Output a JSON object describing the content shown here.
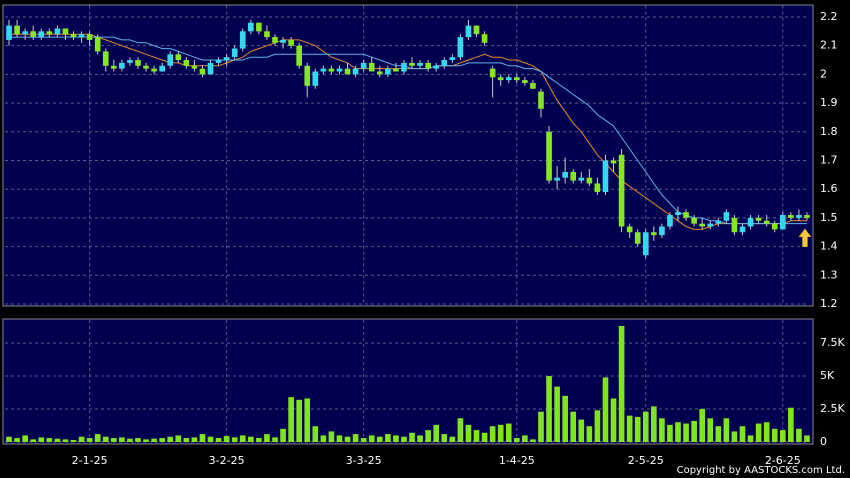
{
  "chart_data": {
    "type": "candlestick",
    "colors": {
      "up": "#36d8f0",
      "down": "#86e622",
      "wick": "#cccccc",
      "panel": "#000050"
    },
    "grid": true,
    "ylim": [
      1.2,
      2.24
    ],
    "yticks": [
      1.2,
      1.3,
      1.4,
      1.5,
      1.6,
      1.7,
      1.8,
      1.9,
      2,
      2.1,
      2.2
    ],
    "xticks": [
      {
        "value": 10,
        "label": "2-1-25"
      },
      {
        "value": 27,
        "label": "3-2-25"
      },
      {
        "value": 44,
        "label": "3-3-25"
      },
      {
        "value": 63,
        "label": "1-4-25"
      },
      {
        "value": 79,
        "label": "2-5-25"
      },
      {
        "value": 96,
        "label": "2-6-25"
      }
    ],
    "candles": [
      [
        2.12,
        2.19,
        2.1,
        2.17
      ],
      [
        2.17,
        2.19,
        2.13,
        2.14
      ],
      [
        2.14,
        2.16,
        2.12,
        2.15
      ],
      [
        2.15,
        2.17,
        2.12,
        2.13
      ],
      [
        2.13,
        2.16,
        2.12,
        2.15
      ],
      [
        2.15,
        2.16,
        2.13,
        2.14
      ],
      [
        2.14,
        2.17,
        2.13,
        2.16
      ],
      [
        2.16,
        2.16,
        2.12,
        2.14
      ],
      [
        2.14,
        2.15,
        2.12,
        2.13
      ],
      [
        2.13,
        2.15,
        2.11,
        2.14
      ],
      [
        2.14,
        2.15,
        2.1,
        2.12
      ],
      [
        2.13,
        2.14,
        2.07,
        2.08
      ],
      [
        2.08,
        2.09,
        2.01,
        2.03
      ],
      [
        2.03,
        2.05,
        2.01,
        2.02
      ],
      [
        2.02,
        2.05,
        2.01,
        2.04
      ],
      [
        2.04,
        2.06,
        2.03,
        2.05
      ],
      [
        2.05,
        2.06,
        2.02,
        2.03
      ],
      [
        2.03,
        2.04,
        2.01,
        2.02
      ],
      [
        2.02,
        2.03,
        2.0,
        2.01
      ],
      [
        2.01,
        2.04,
        2.01,
        2.03
      ],
      [
        2.03,
        2.08,
        2.02,
        2.07
      ],
      [
        2.07,
        2.08,
        2.04,
        2.05
      ],
      [
        2.05,
        2.06,
        2.02,
        2.03
      ],
      [
        2.03,
        2.05,
        2.01,
        2.02
      ],
      [
        2.02,
        2.03,
        1.99,
        2.0
      ],
      [
        2.0,
        2.05,
        2.0,
        2.04
      ],
      [
        2.04,
        2.06,
        2.03,
        2.05
      ],
      [
        2.05,
        2.07,
        2.03,
        2.06
      ],
      [
        2.06,
        2.1,
        2.05,
        2.09
      ],
      [
        2.09,
        2.16,
        2.08,
        2.15
      ],
      [
        2.15,
        2.19,
        2.14,
        2.18
      ],
      [
        2.18,
        2.18,
        2.14,
        2.15
      ],
      [
        2.15,
        2.17,
        2.12,
        2.13
      ],
      [
        2.13,
        2.14,
        2.1,
        2.11
      ],
      [
        2.11,
        2.13,
        2.09,
        2.12
      ],
      [
        2.12,
        2.13,
        2.09,
        2.1
      ],
      [
        2.1,
        2.11,
        2.02,
        2.03
      ],
      [
        2.03,
        2.04,
        1.92,
        1.96
      ],
      [
        1.96,
        2.02,
        1.95,
        2.01
      ],
      [
        2.01,
        2.03,
        2.0,
        2.02
      ],
      [
        2.02,
        2.03,
        2.0,
        2.01
      ],
      [
        2.01,
        2.03,
        2.0,
        2.02
      ],
      [
        2.02,
        2.04,
        2.0,
        2.0
      ],
      [
        2.0,
        2.03,
        1.99,
        2.02
      ],
      [
        2.02,
        2.05,
        2.01,
        2.04
      ],
      [
        2.04,
        2.06,
        2.01,
        2.01
      ],
      [
        2.01,
        2.03,
        1.99,
        2.0
      ],
      [
        2.0,
        2.03,
        1.99,
        2.02
      ],
      [
        2.02,
        2.04,
        2.01,
        2.01
      ],
      [
        2.01,
        2.05,
        2.0,
        2.04
      ],
      [
        2.04,
        2.06,
        2.02,
        2.03
      ],
      [
        2.03,
        2.05,
        2.02,
        2.04
      ],
      [
        2.04,
        2.05,
        2.01,
        2.02
      ],
      [
        2.02,
        2.04,
        2.01,
        2.03
      ],
      [
        2.03,
        2.06,
        2.02,
        2.05
      ],
      [
        2.05,
        2.07,
        2.04,
        2.06
      ],
      [
        2.06,
        2.14,
        2.05,
        2.13
      ],
      [
        2.13,
        2.19,
        2.12,
        2.17
      ],
      [
        2.17,
        2.17,
        2.13,
        2.14
      ],
      [
        2.14,
        2.15,
        2.1,
        2.11
      ],
      [
        2.02,
        2.03,
        1.92,
        1.99
      ],
      [
        1.99,
        2.0,
        1.96,
        1.98
      ],
      [
        1.98,
        2.0,
        1.97,
        1.99
      ],
      [
        1.99,
        2.0,
        1.97,
        1.98
      ],
      [
        1.98,
        1.99,
        1.96,
        1.97
      ],
      [
        1.97,
        1.98,
        1.95,
        1.95
      ],
      [
        1.94,
        1.95,
        1.85,
        1.88
      ],
      [
        1.8,
        1.82,
        1.62,
        1.63
      ],
      [
        1.63,
        1.68,
        1.6,
        1.64
      ],
      [
        1.64,
        1.71,
        1.62,
        1.66
      ],
      [
        1.66,
        1.67,
        1.62,
        1.63
      ],
      [
        1.63,
        1.66,
        1.62,
        1.64
      ],
      [
        1.64,
        1.67,
        1.61,
        1.62
      ],
      [
        1.62,
        1.64,
        1.58,
        1.59
      ],
      [
        1.59,
        1.72,
        1.58,
        1.7
      ],
      [
        1.7,
        1.71,
        1.66,
        1.69
      ],
      [
        1.72,
        1.74,
        1.45,
        1.47
      ],
      [
        1.47,
        1.48,
        1.43,
        1.45
      ],
      [
        1.45,
        1.46,
        1.4,
        1.41
      ],
      [
        1.37,
        1.46,
        1.36,
        1.45
      ],
      [
        1.45,
        1.47,
        1.42,
        1.44
      ],
      [
        1.44,
        1.48,
        1.43,
        1.47
      ],
      [
        1.47,
        1.52,
        1.46,
        1.51
      ],
      [
        1.51,
        1.54,
        1.49,
        1.52
      ],
      [
        1.52,
        1.53,
        1.49,
        1.5
      ],
      [
        1.5,
        1.51,
        1.47,
        1.48
      ],
      [
        1.48,
        1.5,
        1.46,
        1.47
      ],
      [
        1.47,
        1.49,
        1.46,
        1.48
      ],
      [
        1.48,
        1.5,
        1.47,
        1.49
      ],
      [
        1.49,
        1.53,
        1.48,
        1.52
      ],
      [
        1.5,
        1.51,
        1.44,
        1.45
      ],
      [
        1.45,
        1.48,
        1.44,
        1.47
      ],
      [
        1.47,
        1.51,
        1.46,
        1.5
      ],
      [
        1.5,
        1.51,
        1.48,
        1.49
      ],
      [
        1.49,
        1.51,
        1.47,
        1.48
      ],
      [
        1.48,
        1.49,
        1.45,
        1.46
      ],
      [
        1.46,
        1.52,
        1.46,
        1.51
      ],
      [
        1.51,
        1.52,
        1.49,
        1.5
      ],
      [
        1.5,
        1.53,
        1.49,
        1.51
      ],
      [
        1.51,
        1.52,
        1.49,
        1.5
      ]
    ],
    "lines": [
      {
        "color": "#e8892a",
        "values": [
          2.14,
          2.14,
          2.14,
          2.14,
          2.14,
          2.14,
          2.14,
          2.14,
          2.14,
          2.14,
          2.14,
          2.13,
          2.12,
          2.11,
          2.1,
          2.09,
          2.08,
          2.07,
          2.06,
          2.05,
          2.04,
          2.04,
          2.03,
          2.03,
          2.03,
          2.03,
          2.03,
          2.04,
          2.05,
          2.06,
          2.08,
          2.09,
          2.1,
          2.11,
          2.12,
          2.12,
          2.12,
          2.11,
          2.1,
          2.08,
          2.06,
          2.05,
          2.04,
          2.02,
          2.02,
          2.02,
          2.02,
          2.02,
          2.02,
          2.02,
          2.02,
          2.02,
          2.02,
          2.03,
          2.03,
          2.03,
          2.04,
          2.05,
          2.06,
          2.07,
          2.06,
          2.06,
          2.05,
          2.05,
          2.04,
          2.03,
          2.01,
          1.96,
          1.91,
          1.87,
          1.83,
          1.8,
          1.76,
          1.72,
          1.69,
          1.66,
          1.63,
          1.61,
          1.59,
          1.57,
          1.55,
          1.53,
          1.51,
          1.49,
          1.47,
          1.46,
          1.46,
          1.47,
          1.48,
          1.48,
          1.48,
          1.48,
          1.48,
          1.48,
          1.48,
          1.48,
          1.48,
          1.49,
          1.49,
          1.49
        ]
      },
      {
        "color": "#5fb4ec",
        "values": [
          2.13,
          2.13,
          2.13,
          2.13,
          2.13,
          2.13,
          2.13,
          2.13,
          2.13,
          2.13,
          2.13,
          2.13,
          2.13,
          2.13,
          2.12,
          2.12,
          2.11,
          2.11,
          2.1,
          2.09,
          2.09,
          2.08,
          2.07,
          2.06,
          2.05,
          2.05,
          2.05,
          2.05,
          2.05,
          2.05,
          2.06,
          2.06,
          2.06,
          2.07,
          2.07,
          2.07,
          2.07,
          2.07,
          2.07,
          2.07,
          2.07,
          2.07,
          2.07,
          2.07,
          2.07,
          2.06,
          2.05,
          2.04,
          2.03,
          2.03,
          2.02,
          2.02,
          2.02,
          2.03,
          2.03,
          2.03,
          2.03,
          2.04,
          2.04,
          2.04,
          2.04,
          2.04,
          2.03,
          2.03,
          2.02,
          2.02,
          2.01,
          1.99,
          1.97,
          1.95,
          1.93,
          1.91,
          1.89,
          1.86,
          1.84,
          1.82,
          1.78,
          1.74,
          1.7,
          1.66,
          1.62,
          1.58,
          1.55,
          1.52,
          1.51,
          1.5,
          1.5,
          1.49,
          1.49,
          1.48,
          1.48,
          1.48,
          1.48,
          1.48,
          1.48,
          1.48,
          1.48,
          1.48,
          1.48,
          1.48
        ]
      }
    ],
    "volume": {
      "color": "#80e41e",
      "ylim": [
        0,
        9250
      ],
      "yticks": [
        0,
        {
          "value": 2500,
          "label": "2.5K"
        },
        {
          "value": 5000,
          "label": "5K"
        },
        {
          "value": 7500,
          "label": "7.5K"
        }
      ],
      "values": [
        400,
        300,
        500,
        200,
        350,
        300,
        250,
        200,
        150,
        400,
        300,
        600,
        400,
        300,
        350,
        250,
        300,
        200,
        250,
        300,
        400,
        500,
        300,
        350,
        600,
        400,
        300,
        450,
        350,
        500,
        400,
        300,
        600,
        350,
        1000,
        3400,
        3200,
        3300,
        1200,
        500,
        800,
        500,
        400,
        600,
        300,
        500,
        400,
        600,
        500,
        400,
        700,
        500,
        900,
        1300,
        600,
        400,
        1800,
        1300,
        900,
        700,
        1200,
        1300,
        1400,
        300,
        500,
        200,
        2300,
        5000,
        4200,
        3500,
        2300,
        1700,
        1200,
        2400,
        4900,
        3300,
        8800,
        2000,
        1900,
        2300,
        2700,
        1800,
        1300,
        1500,
        1400,
        1600,
        2500,
        1800,
        1200,
        1800,
        800,
        1200,
        500,
        1400,
        1500,
        1000,
        900,
        2600,
        1000,
        500
      ]
    }
  },
  "footer": "Copyright by AASTOCKS.com Ltd."
}
